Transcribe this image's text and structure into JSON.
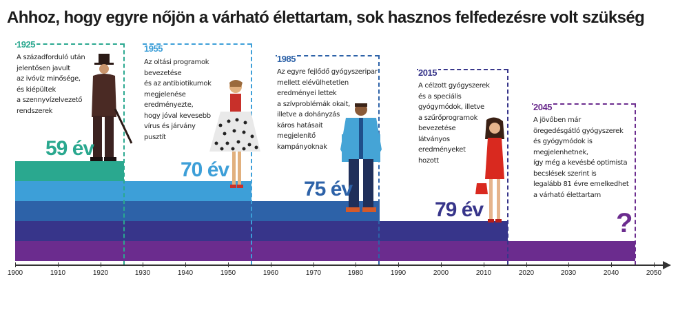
{
  "title": "Ahhoz, hogy egyre nőjön a várható élettartam, sok hasznos felfedezésre volt szükség",
  "axis": {
    "ticks": [
      "1900",
      "1910",
      "1920",
      "1930",
      "1940",
      "1950",
      "1960",
      "1970",
      "1980",
      "1990",
      "2000",
      "2010",
      "2020",
      "2030",
      "2040",
      "2050"
    ]
  },
  "eras": [
    {
      "year": "1925",
      "color": "#2aa88f",
      "lines": [
        "A századforduló után",
        "jelentősen javult",
        "az ivóvíz minősége,",
        "és kiépültek",
        "a szennyvízelvezető",
        "rendszerek"
      ],
      "life": "59 év"
    },
    {
      "year": "1955",
      "color": "#3d9fd8",
      "lines": [
        "Az oltási programok",
        "bevezetése",
        "és az antibiotikumok",
        "megjelenése",
        "eredményezte,",
        "hogy jóval kevesebb",
        "vírus és járvány",
        "pusztít"
      ],
      "life": "70 év"
    },
    {
      "year": "1985",
      "color": "#2d62a8",
      "lines": [
        "Az egyre fejlődő gyógyszeripar",
        "mellett elévülhetetlen",
        "eredményei lettek",
        "a szívproblémák okait,",
        "illetve a dohányzás",
        "káros hatásait",
        "megjelenítő",
        "kampányoknak"
      ],
      "life": "75 év"
    },
    {
      "year": "2015",
      "color": "#37358a",
      "lines": [
        "A célzott gyógyszerek",
        "és a speciális",
        "gyógymódok, illetve",
        "a szűrőprogramok",
        "bevezetése",
        "látványos",
        "eredményeket",
        "hozott"
      ],
      "life": "79 év"
    },
    {
      "year": "2045",
      "color": "#6b2c8e",
      "lines": [
        "A jövőben már",
        "öregedésgátló gyógyszerek",
        "és gyógymódok is",
        "megjelenhetnek,",
        "így még a kevésbé optimista",
        "becslések szerint is",
        "legalább 81 évre emelkedhet",
        "a várható élettartam"
      ],
      "life": "?"
    }
  ],
  "colors": {
    "stripe_teal": "#2aa88f",
    "stripe_light_blue": "#3d9fd8",
    "stripe_blue": "#2d62a8",
    "stripe_indigo": "#37358a",
    "stripe_purple": "#6b2c8e",
    "axis": "#333333"
  }
}
